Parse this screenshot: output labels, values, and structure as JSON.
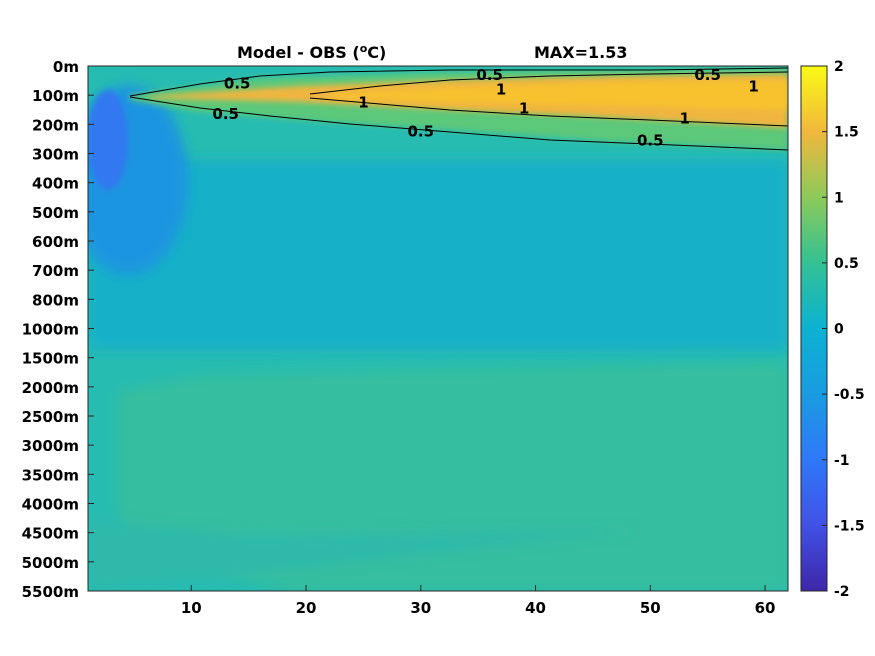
{
  "chart_data": {
    "type": "heatmap",
    "title": "Model - OBS (",
    "title_unit_sup": "o",
    "title_unit_tail": "C)",
    "max_label": "MAX=1.53",
    "xlabel": "",
    "ylabel": "",
    "x_ticks": [
      "10",
      "20",
      "30",
      "40",
      "50",
      "60"
    ],
    "x_tick_values": [
      10,
      20,
      30,
      40,
      50,
      60
    ],
    "xlim": [
      1,
      62
    ],
    "y_ticks": [
      "0m",
      "100m",
      "200m",
      "300m",
      "400m",
      "500m",
      "600m",
      "700m",
      "800m",
      "1000m",
      "1500m",
      "2000m",
      "2500m",
      "3000m",
      "3500m",
      "4000m",
      "4500m",
      "5000m",
      "5500m"
    ],
    "colorbar": {
      "ticks": [
        "2",
        "1.5",
        "1",
        "0.5",
        "0",
        "-0.5",
        "-1",
        "-1.5",
        "-2"
      ],
      "range": [
        -2,
        2
      ],
      "colormap": "parula"
    },
    "contour_labels": [
      {
        "text": "0.5",
        "x": 14,
        "depth_index": 0.6
      },
      {
        "text": "0.5",
        "x": 36,
        "depth_index": 0.3
      },
      {
        "text": "0.5",
        "x": 55,
        "depth_index": 0.3
      },
      {
        "text": "1",
        "x": 37,
        "depth_index": 0.8
      },
      {
        "text": "1",
        "x": 59,
        "depth_index": 0.7
      },
      {
        "text": "1",
        "x": 25,
        "depth_index": 1.25
      },
      {
        "text": "1",
        "x": 39,
        "depth_index": 1.45
      },
      {
        "text": "1",
        "x": 53,
        "depth_index": 1.8
      },
      {
        "text": "0.5",
        "x": 13,
        "depth_index": 1.65
      },
      {
        "text": "0.5",
        "x": 30,
        "depth_index": 2.25
      },
      {
        "text": "0.5",
        "x": 50,
        "depth_index": 2.55
      }
    ]
  }
}
